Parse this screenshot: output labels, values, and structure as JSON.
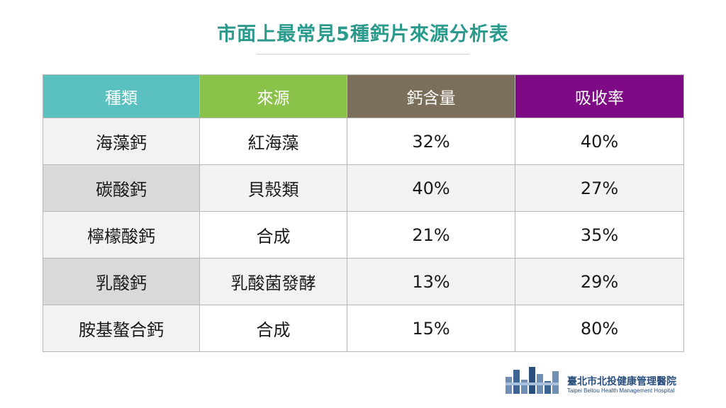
{
  "title": "市面上最常見5種鈣片來源分析表",
  "table": {
    "headers": [
      {
        "label": "種類",
        "color": "#5bc0c0"
      },
      {
        "label": "來源",
        "color": "#8bc34a"
      },
      {
        "label": "鈣含量",
        "color": "#7b6f5b"
      },
      {
        "label": "吸收率",
        "color": "#7e0a86"
      }
    ],
    "rows": [
      [
        "海藻鈣",
        "紅海藻",
        "32%",
        "40%"
      ],
      [
        "碳酸鈣",
        "貝殼類",
        "40%",
        "27%"
      ],
      [
        "檸檬酸鈣",
        "合成",
        "21%",
        "35%"
      ],
      [
        "乳酸鈣",
        "乳酸菌發酵",
        "13%",
        "29%"
      ],
      [
        "胺基螯合鈣",
        "合成",
        "15%",
        "80%"
      ]
    ]
  },
  "logo": {
    "name": "臺北市北投健康管理醫院",
    "subtitle": "Taipei Beitou Health Management Hospital"
  }
}
